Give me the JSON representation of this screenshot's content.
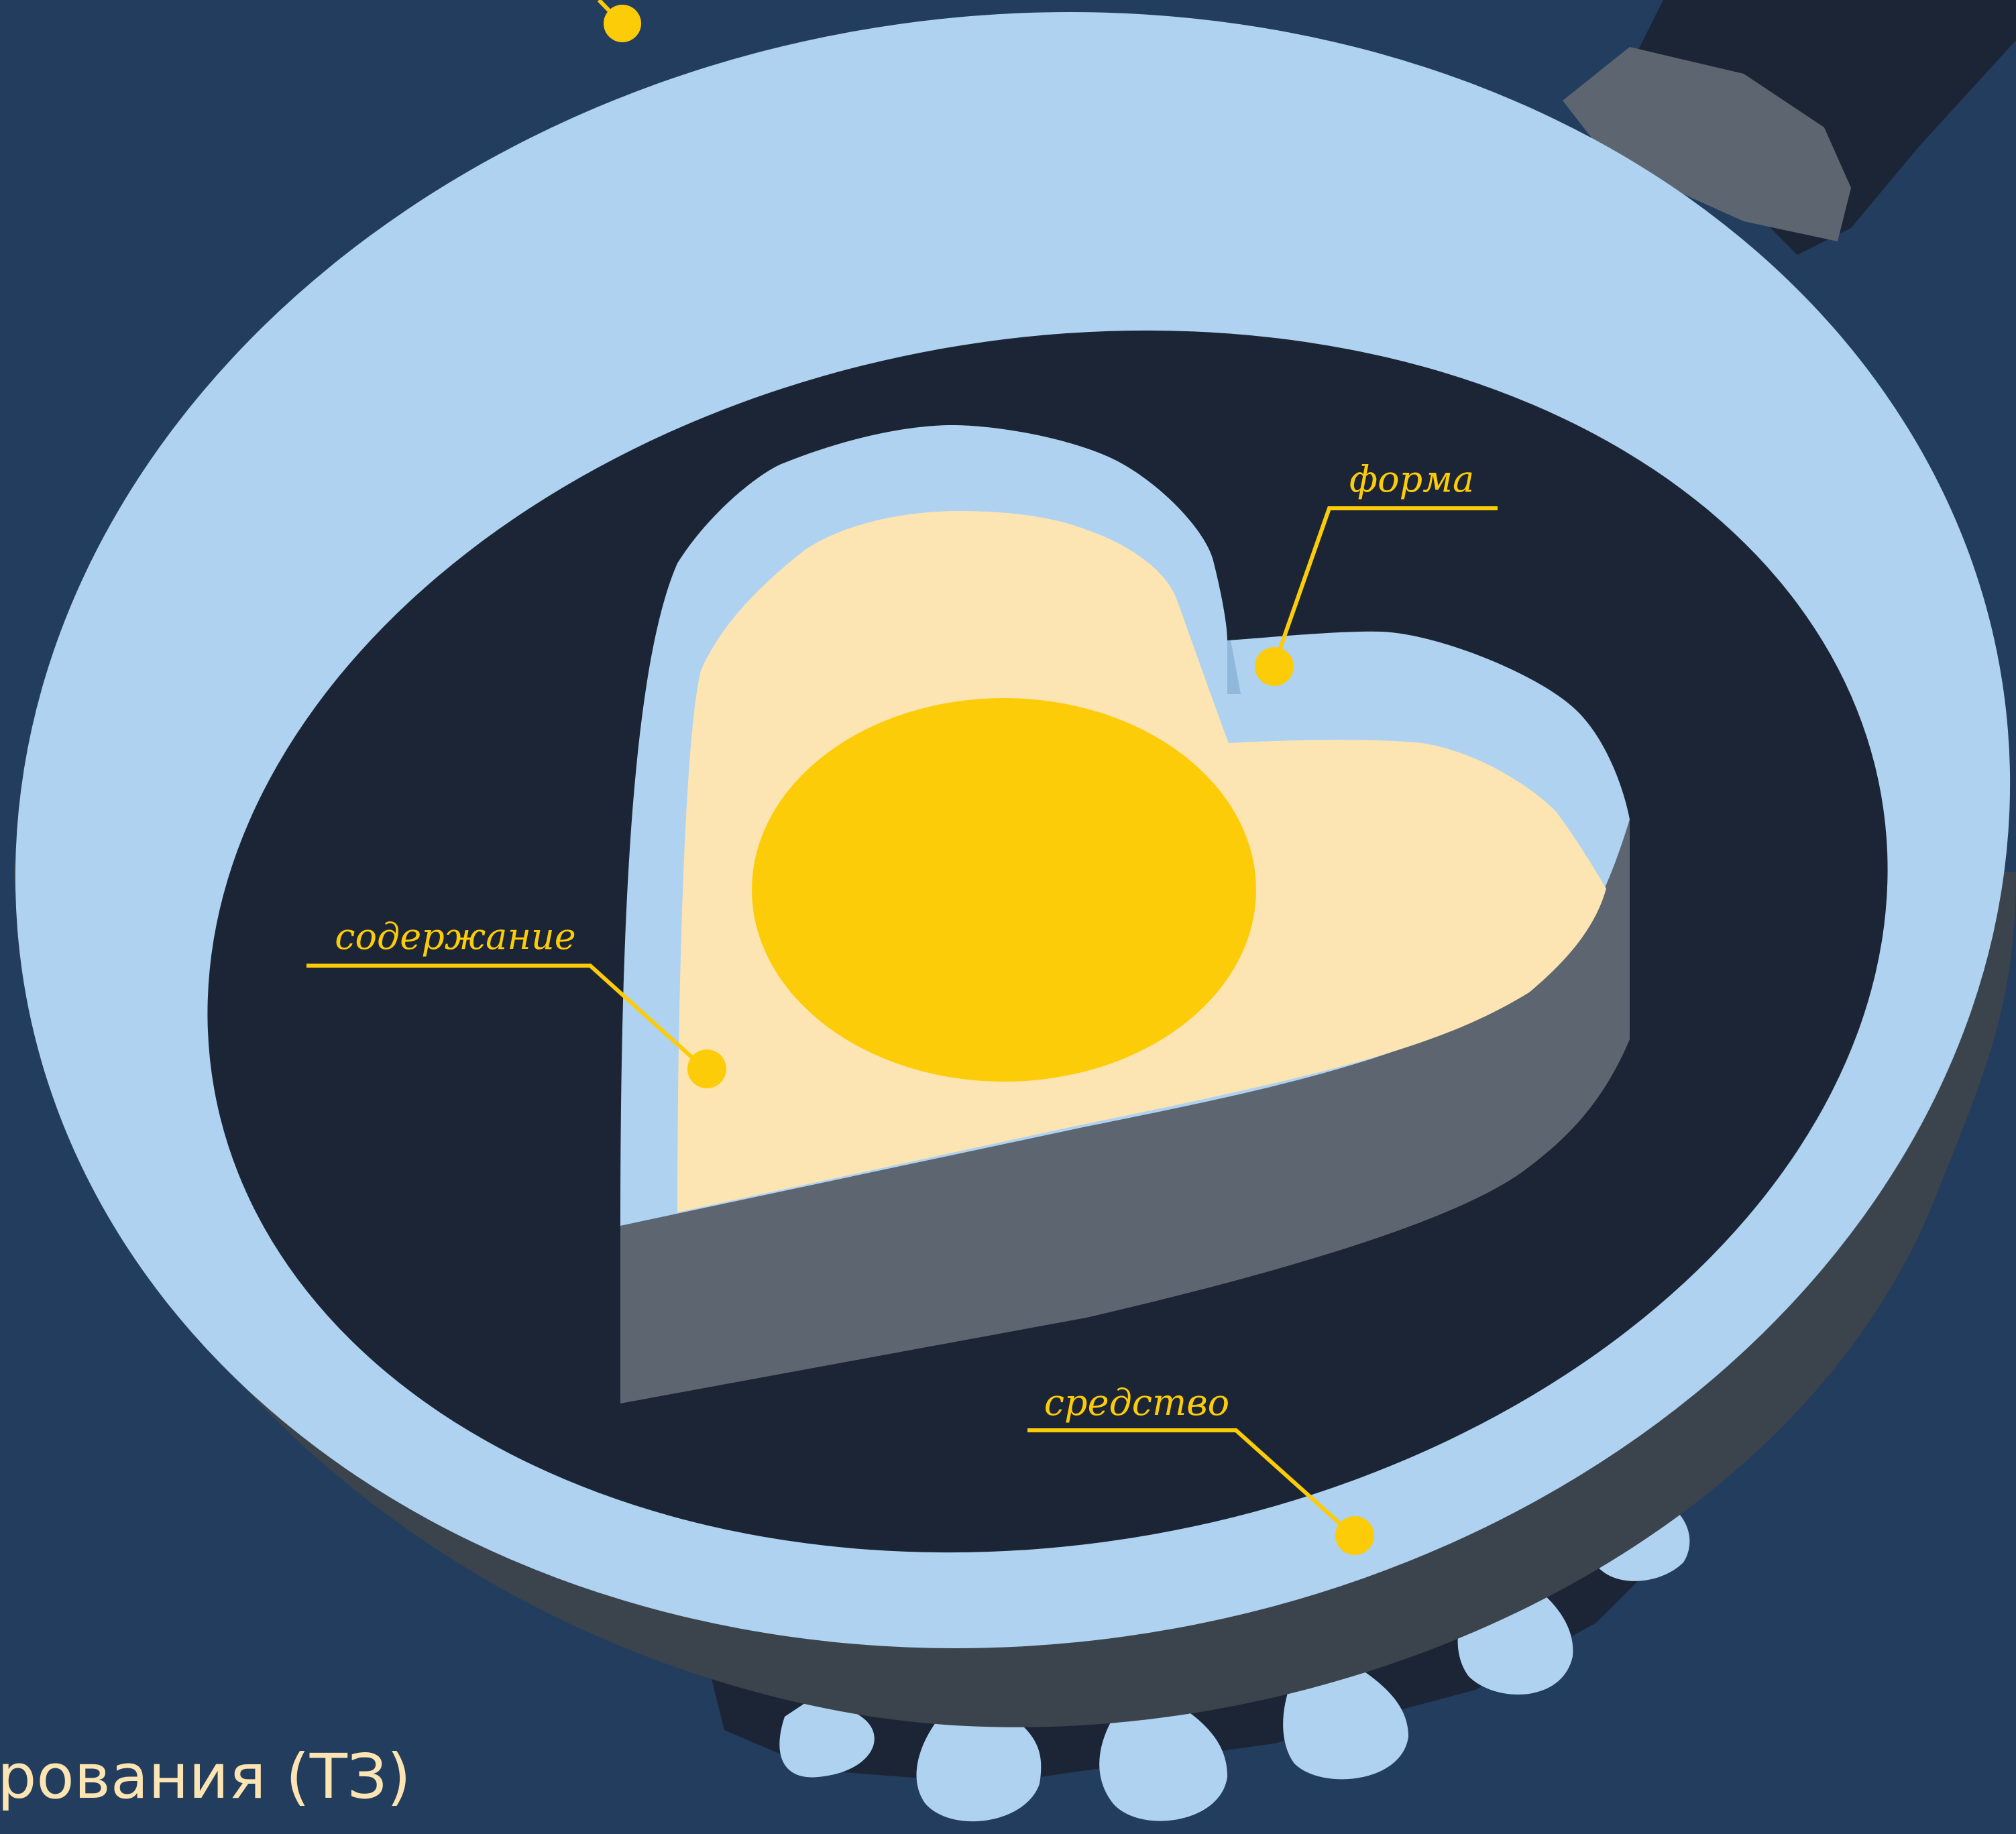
{
  "colors": {
    "background": "#223d5e",
    "pan_rim": "#aed2f0",
    "pan_inner": "#1b2535",
    "pan_side": "#3b444d",
    "handle_collar": "#5d6570",
    "mold_wall": "#5d6570",
    "egg_white": "#fde4b3",
    "egg_yolk": "#fdcc08",
    "flame": "#aed2f0",
    "burner": "#1b2535",
    "callout": "#fdcc08",
    "caption_text": "#fde4b3"
  },
  "icons": {
    "pan": "frying-pan-icon",
    "heart_mold": "heart-shape-mold-icon",
    "egg": "fried-egg-icon",
    "flame": "gas-flame-icon"
  },
  "callouts": {
    "form": "форма",
    "content": "содержание",
    "tool": "средство"
  },
  "caption": "рования (ТЗ)"
}
